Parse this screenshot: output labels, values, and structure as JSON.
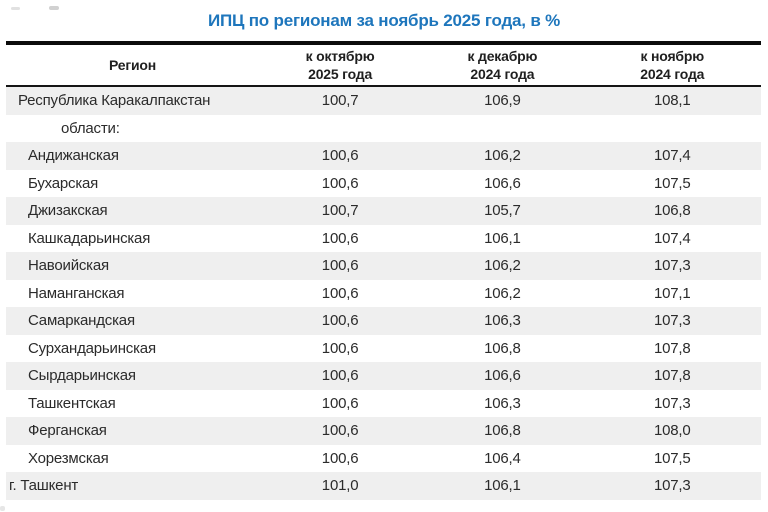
{
  "title": "ИПЦ по регионам за ноябрь 2025 года, в %",
  "header": {
    "col_region": "Регион",
    "col1_line1": "к октябрю",
    "col1_line2": "2025 года",
    "col2_line1": "к декабрю",
    "col2_line2": "2024 года",
    "col3_line1": "к ноябрю",
    "col3_line2": "2024 года"
  },
  "colors": {
    "title_blue": "#1e76bc",
    "stripe_gray": "#efefef",
    "border_black": "#0c0c0c",
    "text": "#2b2b2b"
  },
  "chart_data": {
    "type": "table",
    "title": "ИПЦ по регионам за ноябрь 2025 года, в %",
    "columns": [
      "Регион",
      "к октябрю 2025 года",
      "к декабрю 2024 года",
      "к ноябрю 2024 года"
    ],
    "rows": [
      {
        "region": "Республика Каракалпакстан",
        "indent": "republic",
        "values": [
          "100,7",
          "106,9",
          "108,1"
        ]
      },
      {
        "region": "области:",
        "indent": "group-label",
        "values": [
          "",
          "",
          ""
        ]
      },
      {
        "region": "Андижанская",
        "indent": "oblast",
        "values": [
          "100,6",
          "106,2",
          "107,4"
        ]
      },
      {
        "region": "Бухарская",
        "indent": "oblast",
        "values": [
          "100,6",
          "106,6",
          "107,5"
        ]
      },
      {
        "region": "Джизакская",
        "indent": "oblast",
        "values": [
          "100,7",
          "105,7",
          "106,8"
        ]
      },
      {
        "region": "Кашкадарьинская",
        "indent": "oblast",
        "values": [
          "100,6",
          "106,1",
          "107,4"
        ]
      },
      {
        "region": "Навоийская",
        "indent": "oblast",
        "values": [
          "100,6",
          "106,2",
          "107,3"
        ]
      },
      {
        "region": "Наманганская",
        "indent": "oblast",
        "values": [
          "100,6",
          "106,2",
          "107,1"
        ]
      },
      {
        "region": "Самаркандская",
        "indent": "oblast",
        "values": [
          "100,6",
          "106,3",
          "107,3"
        ]
      },
      {
        "region": "Сурхандарьинская",
        "indent": "oblast",
        "values": [
          "100,6",
          "106,8",
          "107,8"
        ]
      },
      {
        "region": "Сырдарьинская",
        "indent": "oblast",
        "values": [
          "100,6",
          "106,6",
          "107,8"
        ]
      },
      {
        "region": "Ташкентская",
        "indent": "oblast",
        "values": [
          "100,6",
          "106,3",
          "107,3"
        ]
      },
      {
        "region": "Ферганская",
        "indent": "oblast",
        "values": [
          "100,6",
          "106,8",
          "108,0"
        ]
      },
      {
        "region": "Хорезмская",
        "indent": "oblast",
        "values": [
          "100,6",
          "106,4",
          "107,5"
        ]
      },
      {
        "region": "г. Ташкент",
        "indent": "city",
        "values": [
          "101,0",
          "106,1",
          "107,3"
        ]
      }
    ]
  }
}
